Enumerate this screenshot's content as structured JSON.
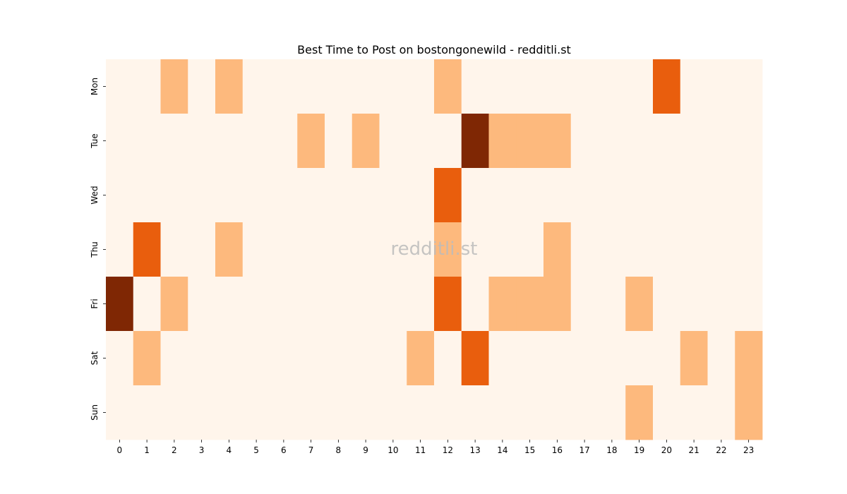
{
  "chart_data": {
    "type": "heatmap",
    "title": "Best Time to Post on bostongonewild - redditli.st",
    "watermark": "redditli.st",
    "xlabel": "",
    "ylabel": "",
    "x_categories": [
      "0",
      "1",
      "2",
      "3",
      "4",
      "5",
      "6",
      "7",
      "8",
      "9",
      "10",
      "11",
      "12",
      "13",
      "14",
      "15",
      "16",
      "17",
      "18",
      "19",
      "20",
      "21",
      "22",
      "23"
    ],
    "y_categories": [
      "Mon",
      "Tue",
      "Wed",
      "Thu",
      "Fri",
      "Sat",
      "Sun"
    ],
    "values": [
      [
        0,
        0,
        1,
        0,
        1,
        0,
        0,
        0,
        0,
        0,
        0,
        0,
        1,
        0,
        0,
        0,
        0,
        0,
        0,
        0,
        2,
        0,
        0,
        0
      ],
      [
        0,
        0,
        0,
        0,
        0,
        0,
        0,
        1,
        0,
        1,
        0,
        0,
        0,
        3,
        1,
        1,
        1,
        0,
        0,
        0,
        0,
        0,
        0,
        0
      ],
      [
        0,
        0,
        0,
        0,
        0,
        0,
        0,
        0,
        0,
        0,
        0,
        0,
        2,
        0,
        0,
        0,
        0,
        0,
        0,
        0,
        0,
        0,
        0,
        0
      ],
      [
        0,
        2,
        0,
        0,
        1,
        0,
        0,
        0,
        0,
        0,
        0,
        0,
        1,
        0,
        0,
        0,
        1,
        0,
        0,
        0,
        0,
        0,
        0,
        0
      ],
      [
        3,
        0,
        1,
        0,
        0,
        0,
        0,
        0,
        0,
        0,
        0,
        0,
        2,
        0,
        1,
        1,
        1,
        0,
        0,
        1,
        0,
        0,
        0,
        0
      ],
      [
        0,
        1,
        0,
        0,
        0,
        0,
        0,
        0,
        0,
        0,
        0,
        1,
        0,
        2,
        0,
        0,
        0,
        0,
        0,
        0,
        0,
        1,
        0,
        1
      ],
      [
        0,
        0,
        0,
        0,
        0,
        0,
        0,
        0,
        0,
        0,
        0,
        0,
        0,
        0,
        0,
        0,
        0,
        0,
        0,
        1,
        0,
        0,
        0,
        1
      ]
    ],
    "colormap": "Oranges",
    "color_levels": [
      "#fff5eb",
      "#fdb97d",
      "#e95e0d",
      "#7f2704"
    ],
    "colorbar": false,
    "grid": false
  }
}
